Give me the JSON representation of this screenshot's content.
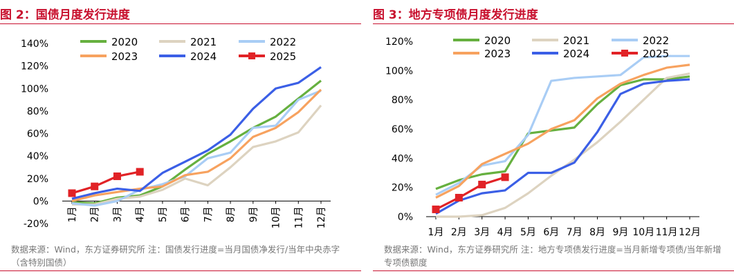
{
  "figures": [
    {
      "title": "图 2：国债月度发行进度",
      "source": "数据来源：Wind，东方证券研究所   注：国债发行进度=当月国债净发行/当年中央赤字（含特别国债）"
    },
    {
      "title": "图 3：地方专项债月度发行进度",
      "source": "数据来源：Wind，东方证券研究所   注：地方专项债发行进度=当月新增专项债/当年新增专项债额度"
    }
  ],
  "chart_data": [
    {
      "type": "line",
      "title": "图 2：国债月度发行进度",
      "categories": [
        "1月",
        "2月",
        "3月",
        "4月",
        "5月",
        "6月",
        "7月",
        "8月",
        "9月",
        "10月",
        "11月",
        "12月"
      ],
      "yticks": [
        "-20%",
        "0%",
        "20%",
        "40%",
        "60%",
        "80%",
        "100%",
        "120%",
        "140%"
      ],
      "ylim": [
        -20,
        140
      ],
      "grid": false,
      "legend": "top",
      "colors": {
        "2020": "#66b03f",
        "2021": "#ddd3c0",
        "2022": "#a9cdf5",
        "2023": "#f7a25f",
        "2024": "#3b5fe6",
        "2025": "#e12226"
      },
      "series": [
        {
          "name": "2020",
          "values": [
            -1,
            -2,
            3,
            5,
            13,
            28,
            42,
            53,
            65,
            75,
            91,
            107
          ]
        },
        {
          "name": "2021",
          "values": [
            -3,
            -3,
            2,
            4,
            10,
            20,
            14,
            30,
            48,
            53,
            61,
            85
          ]
        },
        {
          "name": "2022",
          "values": [
            -2,
            -4,
            0,
            10,
            15,
            22,
            38,
            43,
            65,
            67,
            90,
            98
          ]
        },
        {
          "name": "2023",
          "values": [
            0,
            5,
            8,
            11,
            13,
            23,
            26,
            38,
            57,
            65,
            79,
            99
          ]
        },
        {
          "name": "2024",
          "values": [
            2,
            7,
            11,
            9,
            25,
            35,
            45,
            59,
            82,
            100,
            105,
            119
          ]
        },
        {
          "name": "2025",
          "values": [
            7,
            13,
            22,
            26,
            null,
            null,
            null,
            null,
            null,
            null,
            null,
            null
          ]
        }
      ]
    },
    {
      "type": "line",
      "title": "图 3：地方专项债月度发行进度",
      "categories": [
        "1月",
        "2月",
        "3月",
        "4月",
        "5月",
        "6月",
        "7月",
        "8月",
        "9月",
        "10月",
        "11月",
        "12月"
      ],
      "yticks": [
        "0%",
        "20%",
        "40%",
        "60%",
        "80%",
        "100%",
        "120%"
      ],
      "ylim": [
        0,
        120
      ],
      "grid": false,
      "legend": "top",
      "colors": {
        "2020": "#66b03f",
        "2021": "#ddd3c0",
        "2022": "#a9cdf5",
        "2023": "#f7a25f",
        "2024": "#3b5fe6",
        "2025": "#e12226"
      },
      "series": [
        {
          "name": "2020",
          "values": [
            19,
            25,
            29,
            31,
            57,
            59,
            61,
            77,
            90,
            94,
            94,
            96
          ]
        },
        {
          "name": "2021",
          "values": [
            0,
            0,
            1,
            6,
            16,
            28,
            39,
            51,
            65,
            80,
            95,
            98
          ]
        },
        {
          "name": "2022",
          "values": [
            15,
            23,
            35,
            38,
            56,
            93,
            95,
            96,
            97,
            109,
            110,
            110
          ]
        },
        {
          "name": "2023",
          "values": [
            13,
            21,
            36,
            43,
            50,
            60,
            66,
            81,
            91,
            97,
            102,
            104
          ]
        },
        {
          "name": "2024",
          "values": [
            2,
            11,
            16,
            18,
            30,
            30,
            37,
            58,
            84,
            91,
            93,
            94
          ]
        },
        {
          "name": "2025",
          "values": [
            5,
            13,
            22,
            27,
            null,
            null,
            null,
            null,
            null,
            null,
            null,
            null
          ]
        }
      ]
    }
  ]
}
